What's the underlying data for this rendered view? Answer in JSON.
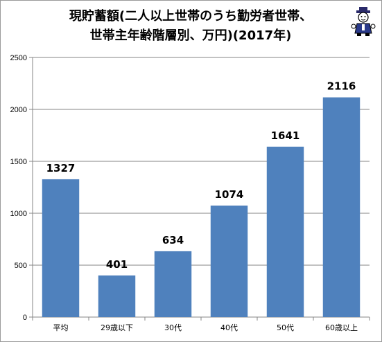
{
  "title": "現貯蓄額(二人以上世帯のうち勤労者世帯、\n世帯主年齢階層別、万円)(2017年)",
  "logo_icon": "mascot-character-icon",
  "colors": {
    "bar": "#4f81bd",
    "axis": "#868686",
    "grid": "#868686"
  },
  "chart_data": {
    "type": "bar",
    "title": "現貯蓄額(二人以上世帯のうち勤労者世帯、世帯主年齢階層別、万円)(2017年)",
    "categories": [
      "平均",
      "29歳以下",
      "30代",
      "40代",
      "50代",
      "60歳以上"
    ],
    "values": [
      1327,
      401,
      634,
      1074,
      1641,
      2116
    ],
    "xlabel": "",
    "ylabel": "",
    "ylim": [
      0,
      2500
    ],
    "yticks": [
      0,
      500,
      1000,
      1500,
      2000,
      2500
    ],
    "grid": true,
    "legend": "none"
  }
}
